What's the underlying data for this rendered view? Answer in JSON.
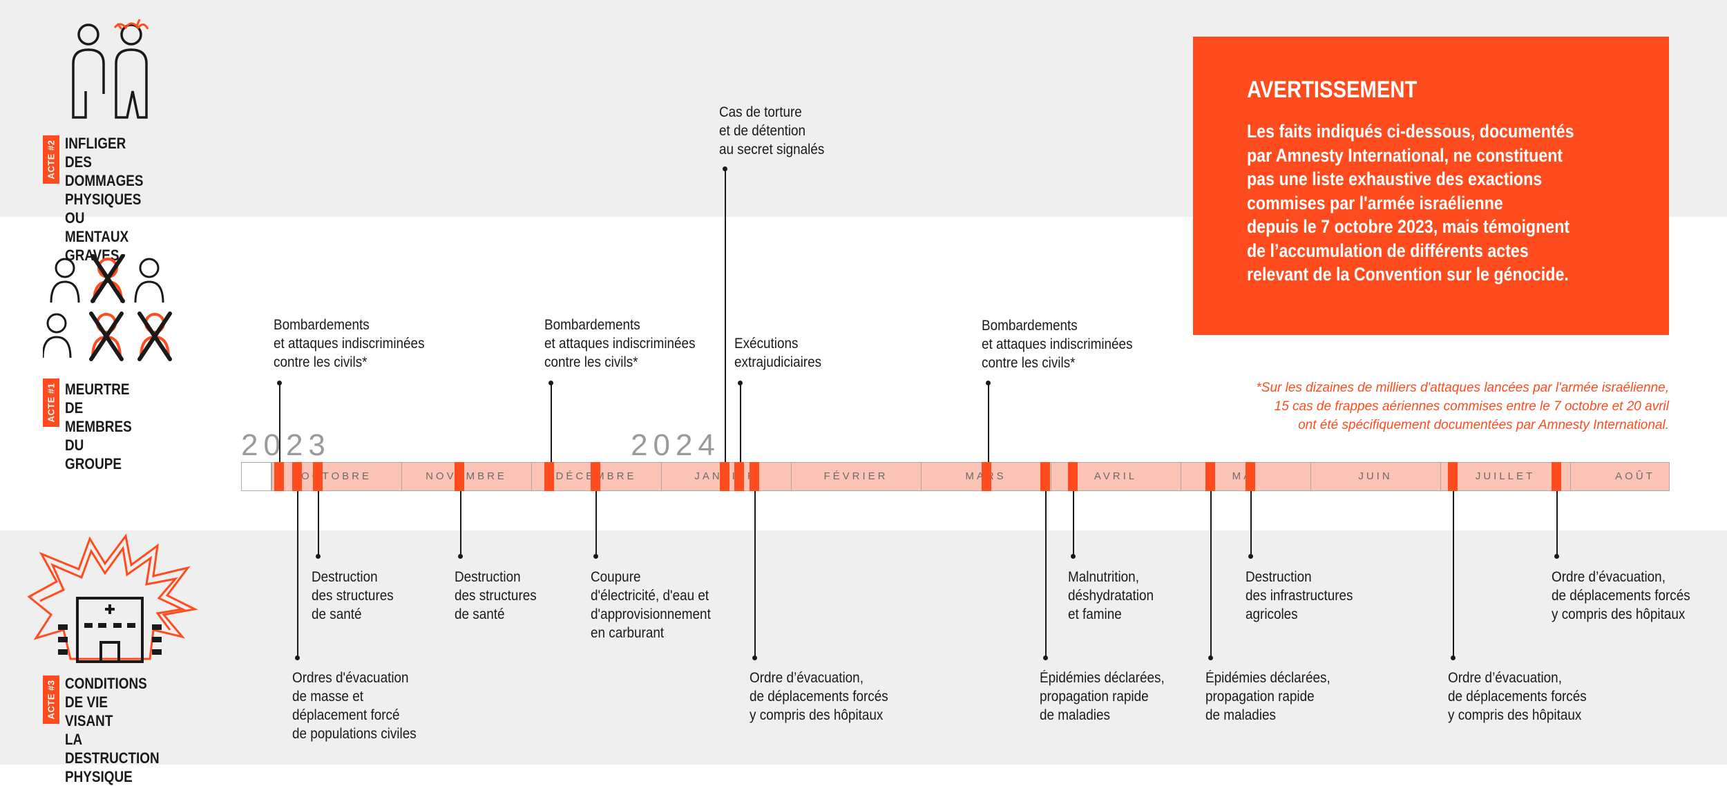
{
  "categories": [
    {
      "tag": "ACTE #2",
      "title": "INFLIGER\nDES DOMMAGES\nPHYSIQUES OU\nMENTAUX GRAVES"
    },
    {
      "tag": "ACTE #1",
      "title": "MEURTRE\nDE MEMBRES\nDU GROUPE"
    },
    {
      "tag": "ACTE #3",
      "title": "CONDITIONS\nDE VIE VISANT\nLA DESTRUCTION\nPHYSIQUE"
    }
  ],
  "warning": {
    "title": "AVERTISSEMENT",
    "body": "Les faits indiqués ci-dessous, documentés\npar Amnesty International, ne constituent\npas une liste exhaustive des exactions\ncommises par l'armée israélienne\ndepuis le 7 octobre 2023, mais témoignent\nde l’accumulation de différents actes\nrelevant de la Convention sur le génocide."
  },
  "footnote": "*Sur les dizaines de milliers d'attaques lancées par l'armée israélienne,\n15 cas de frappes aériennes commises entre le 7 octobre et 20 avril\nont été spécifiquement documentées par Amnesty International.",
  "years": [
    "2023",
    "2024"
  ],
  "months": [
    "OCTOBRE",
    "NOVEMBRE",
    "DÉCEMBRE",
    "JANVIER",
    "FÉVRIER",
    "MARS",
    "AVRIL",
    "MAI",
    "JUIN",
    "JUILLET",
    "AOÛT"
  ],
  "events_top": [
    "Bombardements\net attaques indiscriminées\ncontre les civils*",
    "Bombardements\net attaques indiscriminées\ncontre les civils*",
    "Cas de torture\net de détention\nau secret signalés",
    "Exécutions\nextrajudiciaires",
    "Bombardements\net attaques indiscriminées\ncontre les civils*"
  ],
  "events_mid": [
    "Destruction\ndes structures\nde santé",
    "Destruction\ndes structures\nde santé",
    "Coupure\nd'électricité, d'eau et\nd'approvisionnement\nen carburant",
    "Malnutrition,\ndéshydratation\net famine",
    "Destruction\ndes infrastructures\nagricoles",
    "Ordre d’évacuation,\nde déplacements forcés\ny compris des hôpitaux"
  ],
  "events_low": [
    "Ordres d'évacuation\nde masse et\ndéplacement forcé\nde populations civiles",
    "Ordre d’évacuation,\nde déplacements forcés\ny compris des hôpitaux",
    "Épidémies déclarées,\npropagation rapide\nde maladies",
    "Épidémies déclarées,\npropagation rapide\nde maladies",
    "Ordre d’évacuation,\nde déplacements forcés\ny compris des hôpitaux"
  ],
  "colors": {
    "accent": "#ff4c1f",
    "bar": "#fcc4b7",
    "band": "#efefef"
  }
}
